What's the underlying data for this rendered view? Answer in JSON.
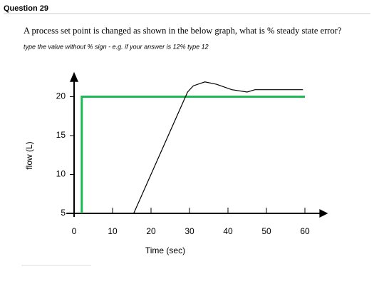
{
  "header": {
    "title": "Question 29"
  },
  "question": {
    "text": "A process set point is changed as shown in the below graph, what is % steady state error?",
    "instruction": "type the value without % sign - e.g. if your answer is 12% type 12"
  },
  "chart_data": {
    "type": "line",
    "xlabel": "Time (sec)",
    "ylabel": "flow (L)",
    "xlim": [
      -2,
      66
    ],
    "ylim": [
      5,
      23
    ],
    "xticks": [
      0,
      10,
      20,
      30,
      40,
      50,
      60
    ],
    "yticks": [
      5,
      10,
      15,
      20
    ],
    "series": [
      {
        "color": "#1db954",
        "x": [
          2,
          2,
          60
        ],
        "values": [
          5,
          20,
          20
        ]
      },
      {
        "color": "#000000",
        "x": [
          15.5,
          29.5,
          31,
          34,
          37,
          41,
          45,
          47,
          59.5
        ],
        "values": [
          5,
          20.6,
          21.4,
          21.9,
          21.6,
          20.9,
          20.6,
          20.9,
          20.9
        ]
      }
    ]
  }
}
